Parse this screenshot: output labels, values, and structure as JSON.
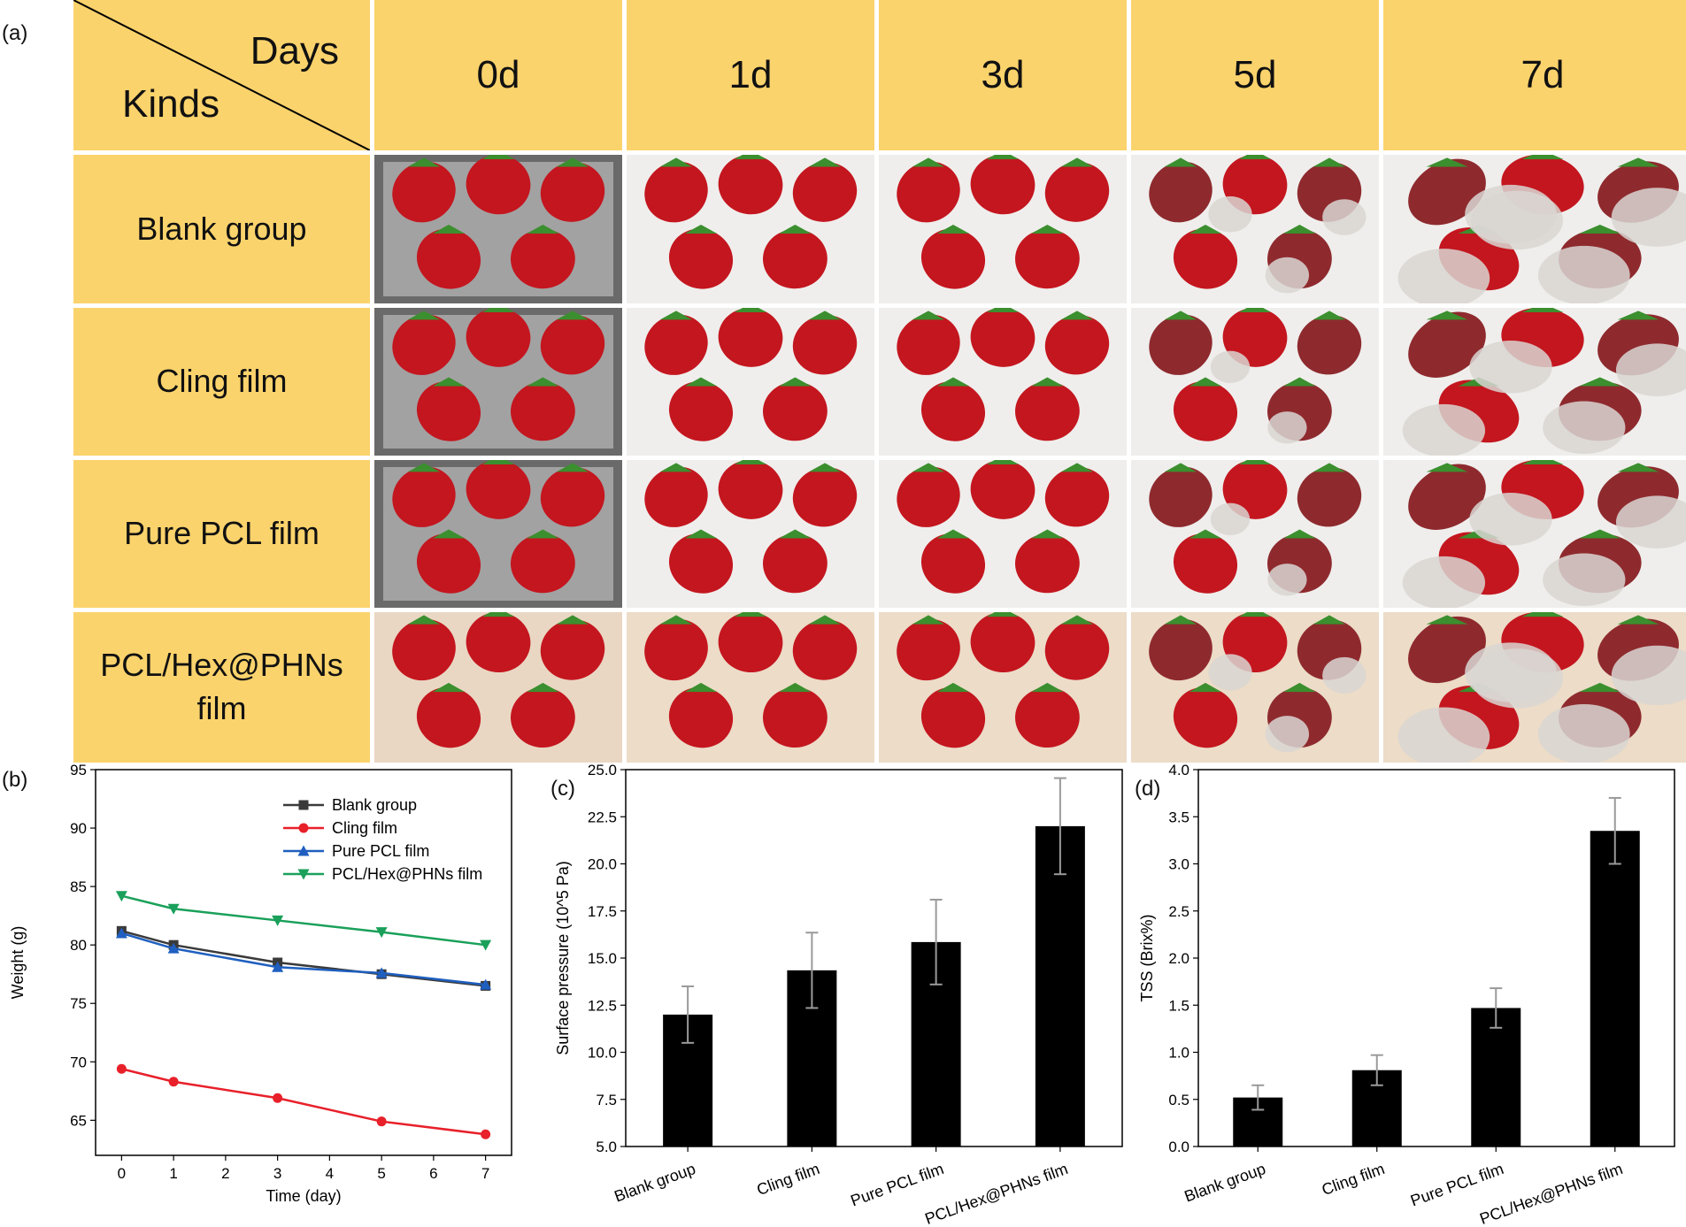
{
  "panel_labels": {
    "a": "(a)",
    "b": "(b)",
    "c": "(c)",
    "d": "(d)"
  },
  "table": {
    "corner_days": "Days",
    "corner_kinds": "Kinds",
    "days": [
      "0d",
      "1d",
      "3d",
      "5d",
      "7d"
    ],
    "kinds": [
      "Blank group",
      "Cling film",
      "Pure PCL film",
      "PCL/Hex@PHNs film"
    ]
  },
  "colors": {
    "header_bg": "#fbd36c",
    "berry": "#c4161f",
    "mold": "#d9d6d2",
    "blank": "#3a3a3a",
    "cling": "#e8202a",
    "pcl": "#1f5fbf",
    "phns": "#1aa05a"
  },
  "chart_data": [
    {
      "type": "line",
      "xlabel": "Time (day)",
      "ylabel": "Weight (g)",
      "xlim": [
        -0.5,
        7.5
      ],
      "ylim": [
        62,
        95
      ],
      "xticks": [
        0,
        1,
        2,
        3,
        4,
        5,
        6,
        7
      ],
      "yticks": [
        65,
        70,
        75,
        80,
        85,
        90,
        95
      ],
      "legend_position": "top-right",
      "series": [
        {
          "name": "Blank group",
          "color": "#3a3a3a",
          "marker": "square",
          "x": [
            0,
            1,
            3,
            5,
            7
          ],
          "values": [
            81.2,
            80.0,
            78.5,
            77.5,
            76.5
          ]
        },
        {
          "name": "Cling film",
          "color": "#e8202a",
          "marker": "circle",
          "x": [
            0,
            1,
            3,
            5,
            7
          ],
          "values": [
            69.4,
            68.3,
            66.9,
            64.9,
            63.8
          ]
        },
        {
          "name": "Pure PCL film",
          "color": "#1f5fbf",
          "marker": "triangle-up",
          "x": [
            0,
            1,
            3,
            5,
            7
          ],
          "values": [
            81.0,
            79.7,
            78.1,
            77.6,
            76.6
          ]
        },
        {
          "name": "PCL/Hex@PHNs film",
          "color": "#1aa05a",
          "marker": "triangle-down",
          "x": [
            0,
            1,
            3,
            5,
            7
          ],
          "values": [
            84.2,
            83.1,
            82.1,
            81.1,
            80.0
          ]
        }
      ]
    },
    {
      "type": "bar",
      "ylabel": "Surface pressure (10^5 Pa)",
      "categories": [
        "Blank group",
        "Cling film",
        "Pure PCL film",
        "PCL/Hex@PHNs film"
      ],
      "values": [
        12.0,
        14.35,
        15.85,
        22.0
      ],
      "errors": [
        1.5,
        2.0,
        2.25,
        2.55
      ],
      "ylim": [
        5.0,
        25.0
      ],
      "yticks": [
        5.0,
        7.5,
        10.0,
        12.5,
        15.0,
        17.5,
        20.0,
        22.5,
        25.0
      ]
    },
    {
      "type": "bar",
      "ylabel": "TSS (Brix%)",
      "categories": [
        "Blank group",
        "Cling film",
        "Pure PCL film",
        "PCL/Hex@PHNs film"
      ],
      "values": [
        0.52,
        0.81,
        1.47,
        3.35
      ],
      "errors": [
        0.13,
        0.16,
        0.21,
        0.35
      ],
      "ylim": [
        0.0,
        4.0
      ],
      "yticks": [
        0.0,
        0.5,
        1.0,
        1.5,
        2.0,
        2.5,
        3.0,
        3.5,
        4.0
      ]
    }
  ]
}
